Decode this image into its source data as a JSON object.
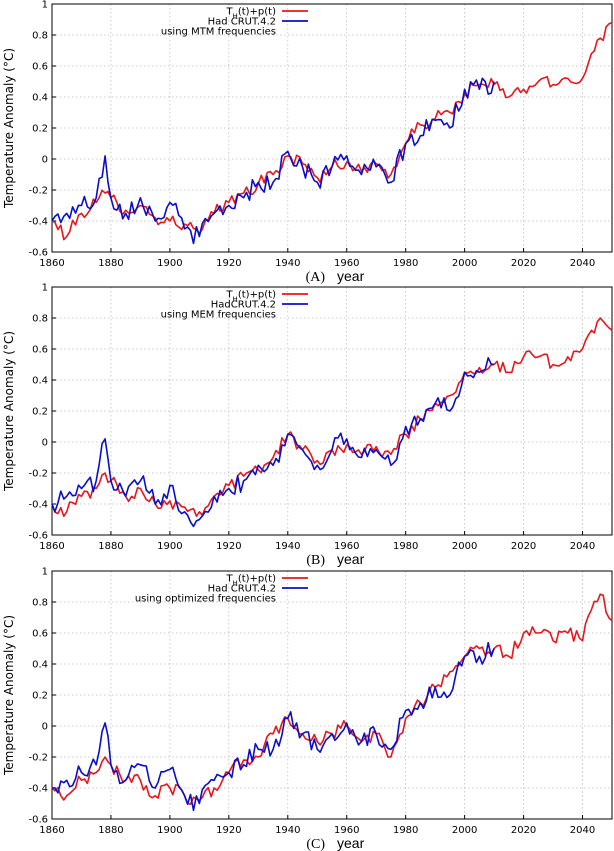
{
  "chart_data": [
    {
      "type": "line",
      "panel_label": "(A)",
      "xlabel": "year",
      "ylabel": "Temperature Anomaly (°C)",
      "xlim": [
        1860,
        2050
      ],
      "ylim": [
        -0.6,
        1.0
      ],
      "xticks": [
        1860,
        1880,
        1900,
        1920,
        1940,
        1960,
        1980,
        2000,
        2020,
        2040
      ],
      "xtick_labels": [
        "1860",
        "1880",
        "1900",
        "1920",
        "1940",
        "1960",
        "1980",
        "2000",
        "2020",
        "2040"
      ],
      "yticks": [
        -0.6,
        -0.4,
        -0.2,
        0,
        0.2,
        0.4,
        0.6,
        0.8,
        1
      ],
      "ytick_labels": [
        "-0.6",
        "-0.4",
        "-0.2",
        "0",
        "0.2",
        "0.4",
        "0.6",
        "0.8",
        "1"
      ],
      "grid": true,
      "legend_position": "top-left",
      "legend_note": "using MTM frequencies",
      "series": [
        {
          "name": "T_H(t)+p(t)",
          "color": "#e8161b",
          "x": [
            1860,
            1865,
            1870,
            1875,
            1878,
            1880,
            1885,
            1890,
            1895,
            1900,
            1905,
            1910,
            1915,
            1920,
            1925,
            1930,
            1935,
            1940,
            1945,
            1950,
            1955,
            1960,
            1965,
            1970,
            1975,
            1980,
            1985,
            1990,
            1995,
            2000,
            2005,
            2010,
            2015,
            2020,
            2025,
            2030,
            2035,
            2040,
            2043,
            2046,
            2050
          ],
          "y": [
            -0.4,
            -0.5,
            -0.35,
            -0.28,
            -0.22,
            -0.25,
            -0.33,
            -0.3,
            -0.38,
            -0.4,
            -0.42,
            -0.48,
            -0.35,
            -0.28,
            -0.22,
            -0.16,
            -0.1,
            0.02,
            -0.03,
            -0.12,
            -0.05,
            -0.02,
            -0.08,
            -0.03,
            -0.1,
            0.1,
            0.22,
            0.26,
            0.3,
            0.42,
            0.48,
            0.48,
            0.4,
            0.45,
            0.5,
            0.48,
            0.52,
            0.52,
            0.68,
            0.78,
            0.88
          ]
        },
        {
          "name": "Had CRUT.4.2",
          "color": "#0b0ec9",
          "x": [
            1860,
            1865,
            1870,
            1875,
            1878,
            1880,
            1885,
            1890,
            1895,
            1900,
            1905,
            1910,
            1915,
            1920,
            1925,
            1930,
            1935,
            1940,
            1945,
            1950,
            1955,
            1960,
            1965,
            1970,
            1975,
            1980,
            1985,
            1990,
            1995,
            2000,
            2005,
            2010
          ],
          "y": [
            -0.4,
            -0.35,
            -0.3,
            -0.25,
            0.02,
            -0.25,
            -0.35,
            -0.25,
            -0.4,
            -0.28,
            -0.45,
            -0.5,
            -0.35,
            -0.3,
            -0.25,
            -0.15,
            -0.15,
            0.05,
            -0.05,
            -0.15,
            -0.05,
            0.02,
            -0.1,
            -0.05,
            -0.15,
            0.1,
            0.15,
            0.25,
            0.2,
            0.45,
            0.45,
            0.5
          ]
        }
      ]
    },
    {
      "type": "line",
      "panel_label": "(B)",
      "xlabel": "year",
      "ylabel": "Temperature Anomaly (°C)",
      "xlim": [
        1860,
        2050
      ],
      "ylim": [
        -0.6,
        1.0
      ],
      "xticks": [
        1860,
        1880,
        1900,
        1920,
        1940,
        1960,
        1980,
        2000,
        2020,
        2040
      ],
      "xtick_labels": [
        "1860",
        "1880",
        "1900",
        "1920",
        "1940",
        "1960",
        "1980",
        "2000",
        "2020",
        "2040"
      ],
      "yticks": [
        -0.6,
        -0.4,
        -0.2,
        0,
        0.2,
        0.4,
        0.6,
        0.8,
        1
      ],
      "ytick_labels": [
        "-0.6",
        "-0.4",
        "-0.2",
        "0",
        "0.2",
        "0.4",
        "0.6",
        "0.8",
        "1"
      ],
      "grid": true,
      "legend_position": "top-left",
      "legend_note": "using MEM frequencies",
      "series": [
        {
          "name": "T_H(t)+p(t)",
          "color": "#e8161b",
          "x": [
            1860,
            1865,
            1870,
            1875,
            1878,
            1880,
            1885,
            1890,
            1895,
            1900,
            1905,
            1910,
            1915,
            1920,
            1925,
            1930,
            1935,
            1940,
            1945,
            1950,
            1955,
            1960,
            1965,
            1970,
            1975,
            1980,
            1985,
            1990,
            1995,
            2000,
            2005,
            2010,
            2015,
            2020,
            2025,
            2030,
            2035,
            2040,
            2043,
            2046,
            2050
          ],
          "y": [
            -0.4,
            -0.45,
            -0.35,
            -0.3,
            -0.2,
            -0.25,
            -0.35,
            -0.3,
            -0.4,
            -0.38,
            -0.42,
            -0.45,
            -0.35,
            -0.28,
            -0.22,
            -0.18,
            -0.1,
            0.05,
            -0.05,
            -0.12,
            -0.05,
            -0.02,
            -0.08,
            -0.03,
            -0.08,
            0.05,
            0.15,
            0.25,
            0.3,
            0.45,
            0.48,
            0.5,
            0.45,
            0.55,
            0.55,
            0.5,
            0.55,
            0.6,
            0.72,
            0.8,
            0.72
          ]
        },
        {
          "name": "HadCRUT.4.2",
          "color": "#0b0ec9",
          "x": [
            1860,
            1865,
            1870,
            1875,
            1878,
            1880,
            1885,
            1890,
            1895,
            1900,
            1905,
            1910,
            1915,
            1920,
            1925,
            1930,
            1935,
            1940,
            1945,
            1950,
            1955,
            1960,
            1965,
            1970,
            1975,
            1980,
            1985,
            1990,
            1995,
            2000,
            2005,
            2010
          ],
          "y": [
            -0.4,
            -0.35,
            -0.3,
            -0.25,
            0.02,
            -0.25,
            -0.35,
            -0.25,
            -0.4,
            -0.28,
            -0.45,
            -0.5,
            -0.35,
            -0.3,
            -0.25,
            -0.15,
            -0.15,
            0.05,
            -0.05,
            -0.15,
            -0.05,
            0.02,
            -0.1,
            -0.05,
            -0.15,
            0.1,
            0.15,
            0.25,
            0.2,
            0.45,
            0.45,
            0.5
          ]
        }
      ]
    },
    {
      "type": "line",
      "panel_label": "(C)",
      "xlabel": "year",
      "ylabel": "Temperature Anomaly (°C)",
      "xlim": [
        1860,
        2050
      ],
      "ylim": [
        -0.6,
        1.0
      ],
      "xticks": [
        1860,
        1880,
        1900,
        1920,
        1940,
        1960,
        1980,
        2000,
        2020,
        2040
      ],
      "xtick_labels": [
        "1860",
        "1880",
        "1900",
        "1920",
        "1940",
        "1960",
        "1980",
        "2000",
        "2020",
        "2040"
      ],
      "yticks": [
        -0.6,
        -0.4,
        -0.2,
        0,
        0.2,
        0.4,
        0.6,
        0.8,
        1
      ],
      "ytick_labels": [
        "-0.6",
        "-0.4",
        "-0.2",
        "0",
        "0.2",
        "0.4",
        "0.6",
        "0.8",
        "1"
      ],
      "grid": true,
      "legend_position": "top-left",
      "legend_note": "using optimized frequencies",
      "series": [
        {
          "name": "T_H(t)+p(t)",
          "color": "#e8161b",
          "x": [
            1860,
            1865,
            1870,
            1875,
            1878,
            1880,
            1885,
            1890,
            1895,
            1900,
            1905,
            1910,
            1915,
            1920,
            1925,
            1930,
            1935,
            1940,
            1945,
            1950,
            1955,
            1960,
            1965,
            1970,
            1975,
            1980,
            1985,
            1990,
            1995,
            2000,
            2005,
            2010,
            2015,
            2020,
            2025,
            2030,
            2035,
            2040,
            2043,
            2046,
            2050
          ],
          "y": [
            -0.4,
            -0.45,
            -0.35,
            -0.3,
            -0.2,
            -0.25,
            -0.35,
            -0.35,
            -0.45,
            -0.4,
            -0.45,
            -0.48,
            -0.4,
            -0.3,
            -0.22,
            -0.2,
            -0.05,
            0.05,
            -0.05,
            -0.1,
            -0.05,
            0.0,
            -0.1,
            -0.05,
            -0.2,
            0.05,
            0.15,
            0.25,
            0.35,
            0.45,
            0.5,
            0.5,
            0.45,
            0.6,
            0.6,
            0.55,
            0.6,
            0.55,
            0.75,
            0.85,
            0.68
          ]
        },
        {
          "name": "Had CRUT.4.2",
          "color": "#0b0ec9",
          "x": [
            1860,
            1865,
            1870,
            1875,
            1878,
            1880,
            1885,
            1890,
            1895,
            1900,
            1905,
            1910,
            1915,
            1920,
            1925,
            1930,
            1935,
            1940,
            1945,
            1950,
            1955,
            1960,
            1965,
            1970,
            1975,
            1980,
            1985,
            1990,
            1995,
            2000,
            2005,
            2010
          ],
          "y": [
            -0.4,
            -0.35,
            -0.3,
            -0.25,
            0.02,
            -0.25,
            -0.35,
            -0.25,
            -0.4,
            -0.28,
            -0.45,
            -0.5,
            -0.35,
            -0.3,
            -0.25,
            -0.15,
            -0.15,
            0.05,
            -0.05,
            -0.15,
            -0.05,
            0.02,
            -0.1,
            -0.05,
            -0.15,
            0.1,
            0.15,
            0.25,
            0.2,
            0.45,
            0.45,
            0.5
          ]
        }
      ]
    }
  ]
}
